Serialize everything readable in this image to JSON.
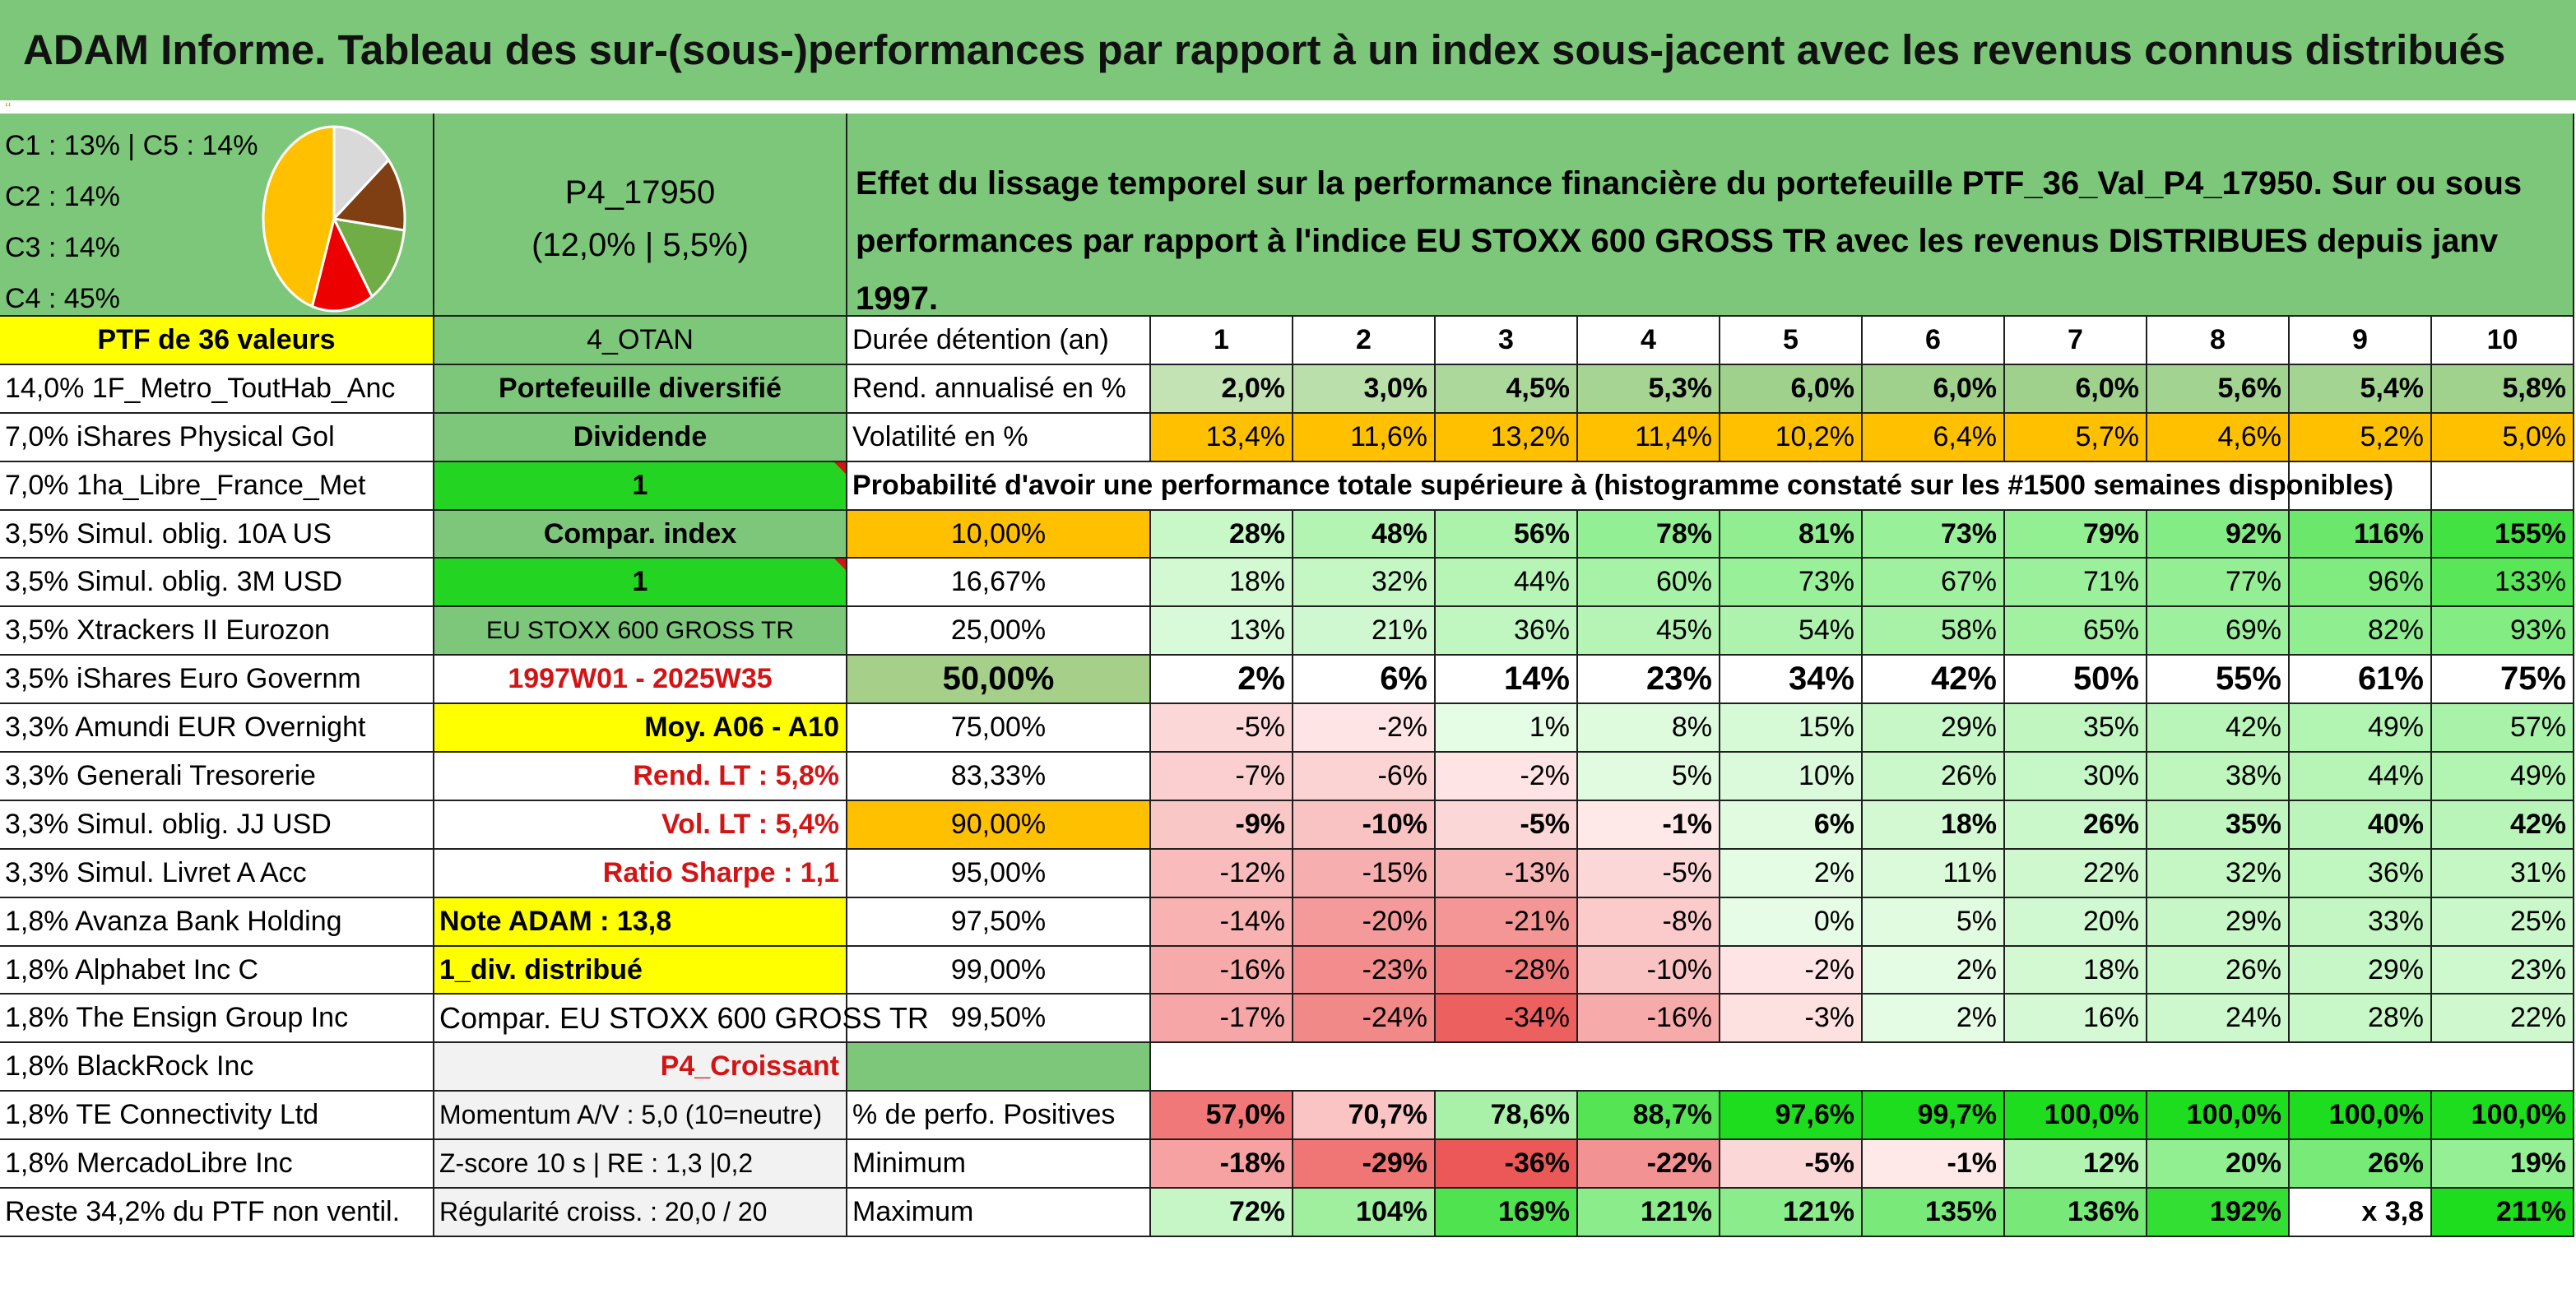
{
  "title": "ADAM Informe. Tableau des sur-(sous-)performances par rapport à un index sous-jacent avec les revenus connus distribués",
  "pie": {
    "lines": [
      "C1 : 13% | C5 : 14%",
      "C2 : 14%",
      "C3 : 14%",
      "C4 : 45%"
    ],
    "slices": [
      {
        "label": "C1",
        "value": 13,
        "color": "#7f3f12"
      },
      {
        "label": "C2",
        "value": 14,
        "color": "#70ad47"
      },
      {
        "label": "C3",
        "value": 14,
        "color": "#ed0000"
      },
      {
        "label": "C4",
        "value": 45,
        "color": "#ffc000"
      },
      {
        "label": "C5",
        "value": 14,
        "color": "#d9d9d9"
      }
    ]
  },
  "portfolio": {
    "name": "P4_17950",
    "stats": "(12,0% | 5,5%)"
  },
  "description": "Effet du lissage temporel sur la performance financière du portefeuille PTF_36_Val_P4_17950. Sur ou sous performances par rapport à l'indice EU STOXX 600 GROSS TR avec les revenus DISTRIBUES depuis janv 1997.",
  "ptf_label": "PTF de 36 valeurs",
  "holdings": [
    "14,0% 1F_Metro_ToutHab_Anc",
    "7,0% iShares Physical Gol",
    "7,0% 1ha_Libre_France_Met",
    "3,5% Simul. oblig. 10A US",
    "3,5% Simul. oblig. 3M USD",
    "3,5% Xtrackers II Eurozon",
    "3,5% iShares Euro Governm",
    "3,3% Amundi EUR Overnight",
    "3,3% Generali Tresorerie",
    "3,3% Simul. oblig. JJ USD",
    "3,3% Simul. Livret A Acc",
    "1,8% Avanza Bank Holding",
    "1,8% Alphabet Inc C",
    "1,8% The Ensign Group Inc",
    "1,8% BlackRock Inc",
    "1,8% TE Connectivity Ltd",
    "1,8% MercadoLibre Inc",
    "Reste 34,2% du PTF non ventil."
  ],
  "info": [
    "4_OTAN",
    "Portefeuille diversifié",
    "Dividende",
    "1",
    "Compar. index",
    "1",
    "EU STOXX 600 GROSS TR",
    "1997W01 - 2025W35",
    "Moy. A06 - A10",
    "Rend. LT : 5,8%",
    "Vol. LT : 5,4%",
    "Ratio Sharpe : 1,1",
    "Note ADAM : 13,8",
    "1_div. distribué",
    "Compar. EU STOXX 600 GROSS TR",
    "P4_Croissant",
    "Momentum A/V : 5,0 (10=neutre)",
    "Z-score 10 s | RE : 1,3 |0,2",
    "Régularité croiss. : 20,0 / 20"
  ],
  "duration_label": "Durée détention (an)",
  "years": [
    "1",
    "2",
    "3",
    "4",
    "5",
    "6",
    "7",
    "8",
    "9",
    "10"
  ],
  "rend_label": "Rend. annualisé en %",
  "rend": [
    "2,0%",
    "3,0%",
    "4,5%",
    "5,3%",
    "6,0%",
    "6,0%",
    "6,0%",
    "5,6%",
    "5,4%",
    "5,8%"
  ],
  "vol_label": "Volatilité en %",
  "vol": [
    "13,4%",
    "11,6%",
    "13,2%",
    "11,4%",
    "10,2%",
    "6,4%",
    "5,7%",
    "4,6%",
    "5,2%",
    "5,0%"
  ],
  "prob_label": "Probabilité d'avoir une performance totale supérieure à (histogramme constaté sur les #1500 semaines disponibles)",
  "quantiles": [
    {
      "p": "10,00%",
      "v": [
        "28%",
        "48%",
        "56%",
        "78%",
        "81%",
        "73%",
        "79%",
        "92%",
        "116%",
        "155%"
      ]
    },
    {
      "p": "16,67%",
      "v": [
        "18%",
        "32%",
        "44%",
        "60%",
        "73%",
        "67%",
        "71%",
        "77%",
        "96%",
        "133%"
      ]
    },
    {
      "p": "25,00%",
      "v": [
        "13%",
        "21%",
        "36%",
        "45%",
        "54%",
        "58%",
        "65%",
        "69%",
        "82%",
        "93%"
      ]
    },
    {
      "p": "50,00%",
      "v": [
        "2%",
        "6%",
        "14%",
        "23%",
        "34%",
        "42%",
        "50%",
        "55%",
        "61%",
        "75%"
      ]
    },
    {
      "p": "75,00%",
      "v": [
        "-5%",
        "-2%",
        "1%",
        "8%",
        "15%",
        "29%",
        "35%",
        "42%",
        "49%",
        "57%"
      ]
    },
    {
      "p": "83,33%",
      "v": [
        "-7%",
        "-6%",
        "-2%",
        "5%",
        "10%",
        "26%",
        "30%",
        "38%",
        "44%",
        "49%"
      ]
    },
    {
      "p": "90,00%",
      "v": [
        "-9%",
        "-10%",
        "-5%",
        "-1%",
        "6%",
        "18%",
        "26%",
        "35%",
        "40%",
        "42%"
      ]
    },
    {
      "p": "95,00%",
      "v": [
        "-12%",
        "-15%",
        "-13%",
        "-5%",
        "2%",
        "11%",
        "22%",
        "32%",
        "36%",
        "31%"
      ]
    },
    {
      "p": "97,50%",
      "v": [
        "-14%",
        "-20%",
        "-21%",
        "-8%",
        "0%",
        "5%",
        "20%",
        "29%",
        "33%",
        "25%"
      ]
    },
    {
      "p": "99,00%",
      "v": [
        "-16%",
        "-23%",
        "-28%",
        "-10%",
        "-2%",
        "2%",
        "18%",
        "26%",
        "29%",
        "23%"
      ]
    },
    {
      "p": "99,50%",
      "v": [
        "-17%",
        "-24%",
        "-34%",
        "-16%",
        "-3%",
        "2%",
        "16%",
        "24%",
        "28%",
        "22%"
      ]
    }
  ],
  "pos_label": "% de perfo. Positives",
  "pos": [
    "57,0%",
    "70,7%",
    "78,6%",
    "88,7%",
    "97,6%",
    "99,7%",
    "100,0%",
    "100,0%",
    "100,0%",
    "100,0%"
  ],
  "min_label": "Minimum",
  "min": [
    "-18%",
    "-29%",
    "-36%",
    "-22%",
    "-5%",
    "-1%",
    "12%",
    "20%",
    "26%",
    "19%"
  ],
  "max_label": "Maximum",
  "max": [
    "72%",
    "104%",
    "169%",
    "121%",
    "121%",
    "135%",
    "136%",
    "192%",
    "x 3,8",
    "211%"
  ],
  "colors": {
    "green_header": "#7dc77a",
    "yellow": "#ffff00",
    "bright_green": "#23d423",
    "orange": "#ffc000",
    "red_text": "#d41414"
  }
}
